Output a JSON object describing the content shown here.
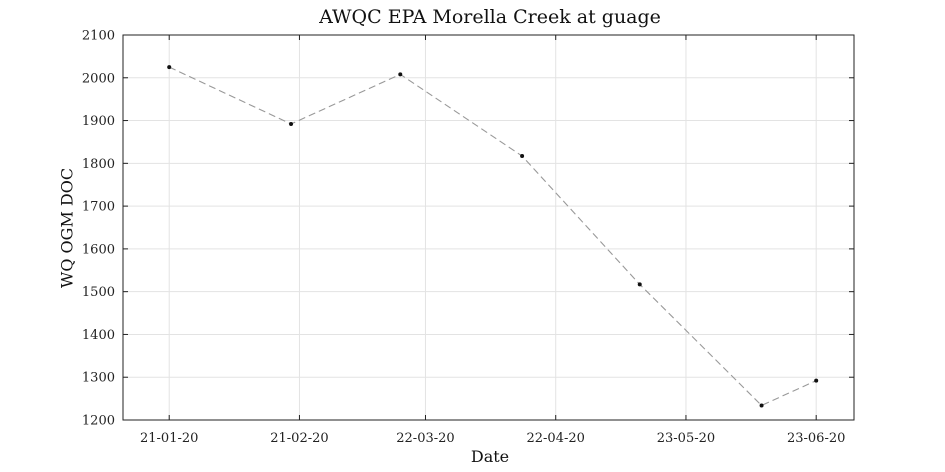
{
  "chart_data": {
    "type": "line",
    "title": "AWQC EPA Morella Creek at guage",
    "xlabel": "Date",
    "ylabel": "WQ OGM DOC",
    "x_tick_labels": [
      "21-01-20",
      "21-02-20",
      "22-03-20",
      "22-04-20",
      "23-05-20",
      "23-06-20"
    ],
    "x_ticks_day": [
      0,
      31,
      61,
      92,
      123,
      154
    ],
    "xlim_day": [
      -11,
      163
    ],
    "ylim": [
      1200,
      2100
    ],
    "y_ticks": [
      1200,
      1300,
      1400,
      1500,
      1600,
      1700,
      1800,
      1900,
      2000,
      2100
    ],
    "grid": true,
    "series": [
      {
        "name": "WQ OGM DOC",
        "line_style": "dashed",
        "line_color": "#999999",
        "marker_color": "#111111",
        "x_day": [
          0,
          29,
          55,
          84,
          112,
          141,
          154
        ],
        "values": [
          2025,
          1892,
          2008,
          1817,
          1517,
          1234,
          1292
        ]
      }
    ]
  }
}
